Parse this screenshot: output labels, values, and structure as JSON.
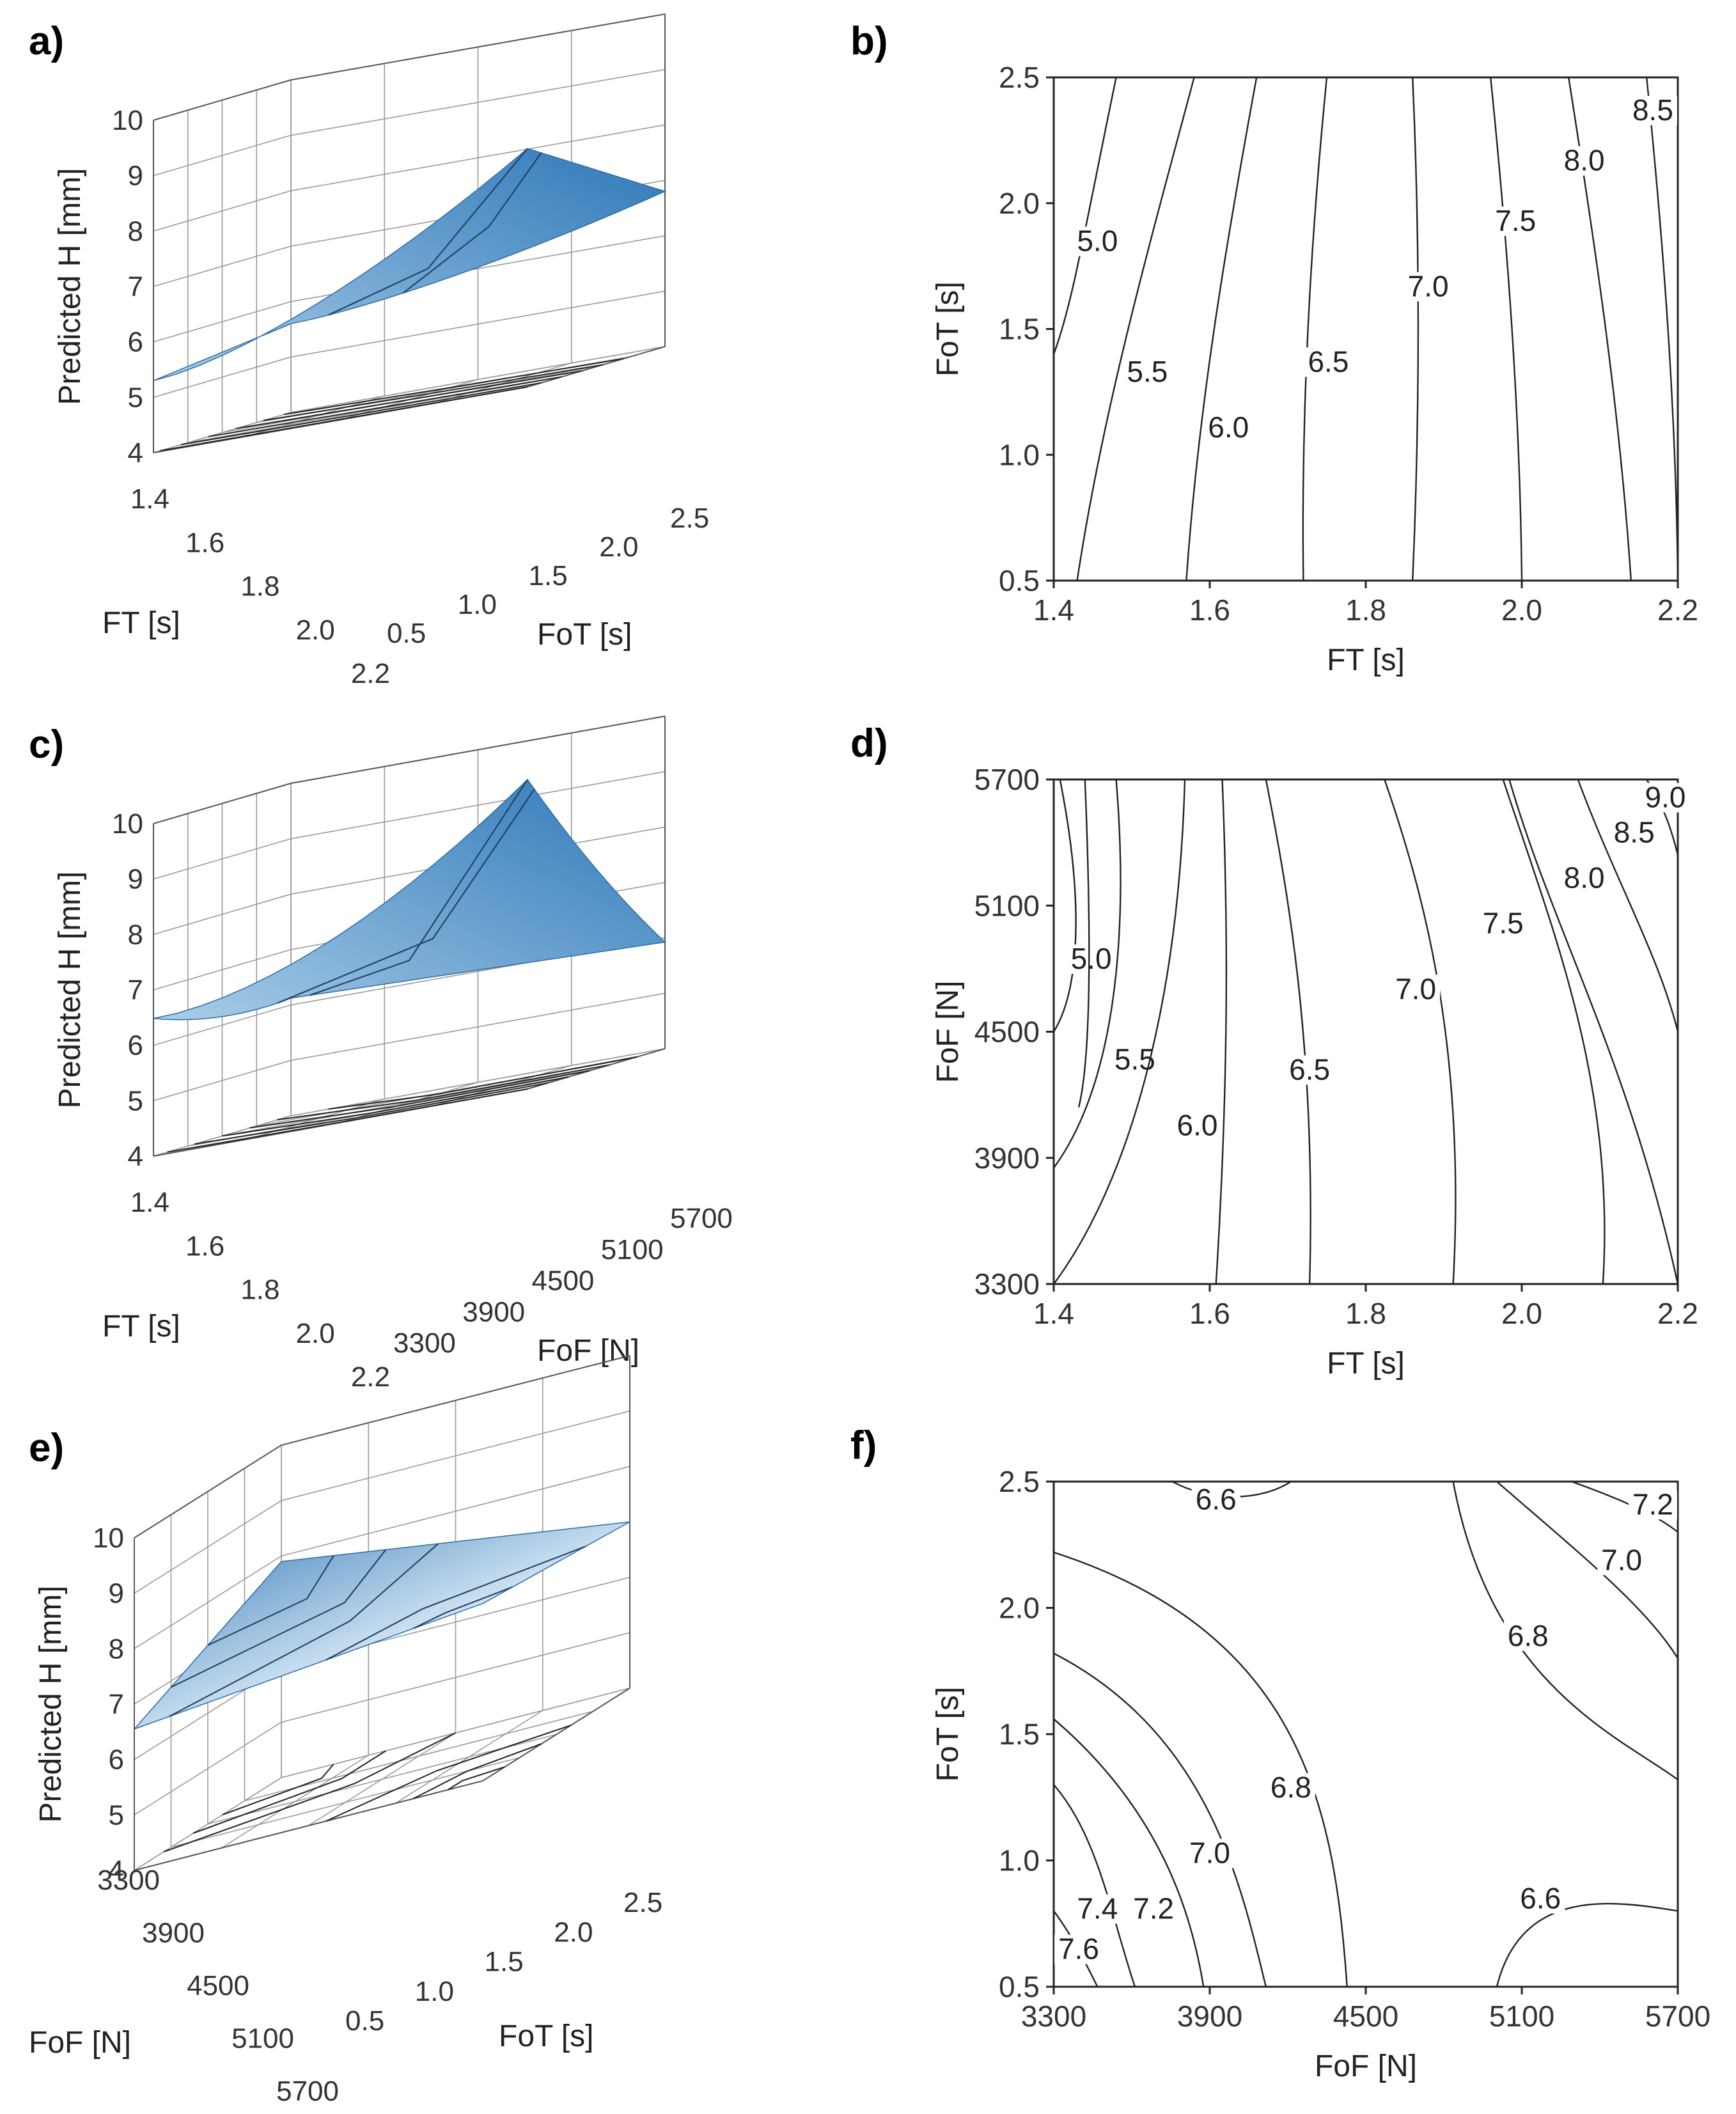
{
  "figure": {
    "panels": [
      "a)",
      "b)",
      "c)",
      "d)",
      "e)",
      "f)"
    ]
  },
  "chart_data": [
    {
      "panel": "a)",
      "type": "surface3d",
      "zlabel": "Predicted H [mm]",
      "xlabel": "FT [s]",
      "ylabel": "FoT [s]",
      "z_ticks": [
        "4",
        "5",
        "6",
        "7",
        "8",
        "9",
        "10"
      ],
      "x_ticks": [
        "1.4",
        "1.6",
        "1.8",
        "2.0",
        "2.2"
      ],
      "y_ticks": [
        "0.5",
        "1.0",
        "1.5",
        "2.0",
        "2.5"
      ],
      "zlim": [
        4,
        10
      ],
      "xlim": [
        1.4,
        2.2
      ],
      "ylim": [
        0.5,
        2.5
      ],
      "surface_range": [
        5.0,
        8.6
      ],
      "surface_color": "#3d86c6"
    },
    {
      "panel": "b)",
      "type": "contour",
      "xlabel": "FT [s]",
      "ylabel": "FoT [s]",
      "xlim": [
        1.4,
        2.2
      ],
      "ylim": [
        0.5,
        2.5
      ],
      "x_ticks": [
        "1.4",
        "1.6",
        "1.8",
        "2.0",
        "2.2"
      ],
      "y_ticks": [
        "0.5",
        "1.0",
        "1.5",
        "2.0",
        "2.5"
      ],
      "levels": [
        {
          "value": "5.0",
          "x_at_bottom": 1.42,
          "x_at_top": 1.5
        },
        {
          "value": "5.5",
          "x_at_bottom": 1.43,
          "x_at_top": 1.58
        },
        {
          "value": "6.0",
          "x_at_bottom": 1.57,
          "x_at_top": 1.66
        },
        {
          "value": "6.5",
          "x_at_bottom": 1.72,
          "x_at_top": 1.75
        },
        {
          "value": "7.0",
          "x_at_bottom": 1.86,
          "x_at_top": 1.86
        },
        {
          "value": "7.5",
          "x_at_bottom": 2.0,
          "x_at_top": 1.96
        },
        {
          "value": "8.0",
          "x_at_bottom": 2.14,
          "x_at_top": 2.06
        },
        {
          "value": "8.5",
          "x_at_bottom": 2.2,
          "x_at_top": 2.16
        }
      ]
    },
    {
      "panel": "c)",
      "type": "surface3d",
      "zlabel": "Predicted H [mm]",
      "xlabel": "FT [s]",
      "ylabel": "FoF [N]",
      "z_ticks": [
        "4",
        "5",
        "6",
        "7",
        "8",
        "9",
        "10"
      ],
      "x_ticks": [
        "1.4",
        "1.6",
        "1.8",
        "2.0",
        "2.2"
      ],
      "y_ticks": [
        "3300",
        "3900",
        "4500",
        "5100",
        "5700"
      ],
      "zlim": [
        4,
        10
      ],
      "xlim": [
        1.4,
        2.2
      ],
      "ylim": [
        3300,
        5700
      ],
      "surface_range": [
        5.8,
        9.2
      ],
      "surface_color": "#3d86c6"
    },
    {
      "panel": "d)",
      "type": "contour",
      "xlabel": "FT [s]",
      "ylabel": "FoF [N]",
      "xlim": [
        1.4,
        2.2
      ],
      "ylim": [
        3300,
        5700
      ],
      "x_ticks": [
        "1.4",
        "1.6",
        "1.8",
        "2.0",
        "2.2"
      ],
      "y_ticks": [
        "3300",
        "3900",
        "4500",
        "5100",
        "5700"
      ],
      "levels": [
        {
          "value": "5.0",
          "x_at_bottom": 1.4,
          "x_at_top": 1.41
        },
        {
          "value": "5.5",
          "x_at_bottom": 1.4,
          "x_at_top": 1.48
        },
        {
          "value": "6.0",
          "x_at_bottom": 1.55,
          "x_at_top": 1.57
        },
        {
          "value": "6.5",
          "x_at_bottom": 1.73,
          "x_at_top": 1.66
        },
        {
          "value": "7.0",
          "x_at_bottom": 1.91,
          "x_at_top": 1.82
        },
        {
          "value": "7.5",
          "x_at_bottom": 2.1,
          "x_at_top": 1.97
        },
        {
          "value": "8.0",
          "x_at_bottom": 2.2,
          "x_at_top": 2.06
        },
        {
          "value": "8.5",
          "x_at_bottom": 2.2,
          "x_at_top": 2.12
        },
        {
          "value": "9.0",
          "x_at_bottom": 2.2,
          "x_at_top": 2.19
        }
      ]
    },
    {
      "panel": "e)",
      "type": "surface3d",
      "zlabel": "Predicted H [mm]",
      "xlabel": "FoF [N]",
      "ylabel": "FoT [s]",
      "z_ticks": [
        "4",
        "5",
        "6",
        "7",
        "8",
        "9",
        "10"
      ],
      "x_ticks": [
        "3300",
        "3900",
        "4500",
        "5100",
        "5700"
      ],
      "y_ticks": [
        "0.5",
        "1.0",
        "1.5",
        "2.0",
        "2.5"
      ],
      "zlim": [
        4,
        10
      ],
      "xlim": [
        3300,
        5700
      ],
      "ylim": [
        0.5,
        2.5
      ],
      "surface_range": [
        6.5,
        7.7
      ],
      "surface_color": "#5b9fd6"
    },
    {
      "panel": "f)",
      "type": "contour",
      "xlabel": "FoF [N]",
      "ylabel": "FoT [s]",
      "xlim": [
        3300,
        5700
      ],
      "ylim": [
        0.5,
        2.5
      ],
      "x_ticks": [
        "3300",
        "3900",
        "4500",
        "5100",
        "5700"
      ],
      "y_ticks": [
        "0.5",
        "1.0",
        "1.5",
        "2.0",
        "2.5"
      ],
      "levels": [
        {
          "value": "6.6"
        },
        {
          "value": "7.2"
        },
        {
          "value": "7.0"
        },
        {
          "value": "6.8"
        },
        {
          "value": "6.8"
        },
        {
          "value": "7.0"
        },
        {
          "value": "7.4"
        },
        {
          "value": "7.2"
        },
        {
          "value": "7.6"
        },
        {
          "value": "6.6"
        }
      ]
    }
  ]
}
